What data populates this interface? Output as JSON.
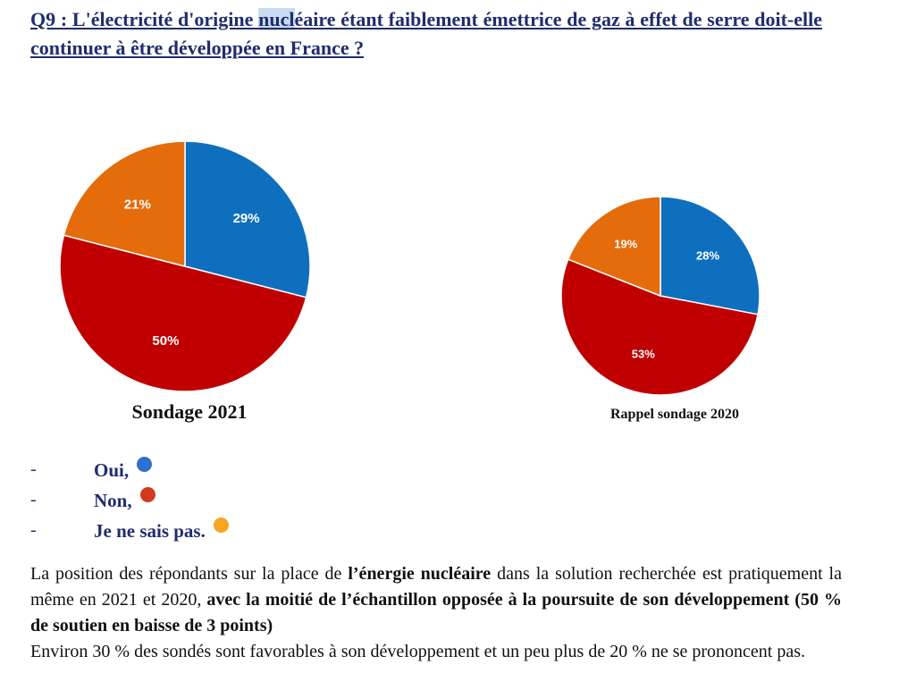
{
  "question": {
    "prefix": "Q9 : L'électricité d'origine ",
    "highlight": "nucl",
    "suffix": "éaire étant faiblement émettrice de gaz à effet de serre doit-elle continuer à être développée en France ?"
  },
  "chart_data": [
    {
      "type": "pie",
      "title": "Sondage 2021",
      "categories": [
        "Oui",
        "Non",
        "Je ne sais pas"
      ],
      "values": [
        29,
        50,
        21
      ],
      "labels": [
        "29%",
        "50%",
        "21%"
      ],
      "colors": [
        "#0f6fbf",
        "#c00000",
        "#e46c0a"
      ]
    },
    {
      "type": "pie",
      "title": "Rappel sondage 2020",
      "categories": [
        "Oui",
        "Non",
        "Je ne sais pas"
      ],
      "values": [
        28,
        53,
        19
      ],
      "labels": [
        "28%",
        "53%",
        "19%"
      ],
      "colors": [
        "#0f6fbf",
        "#c00000",
        "#e46c0a"
      ]
    }
  ],
  "legend": [
    {
      "dash": "-",
      "label": "Oui,",
      "color": "#2f6fd1"
    },
    {
      "dash": "-",
      "label": "Non,",
      "color": "#d23a1f"
    },
    {
      "dash": "-",
      "label": "Je ne sais pas.",
      "color": "#f5a623"
    }
  ],
  "paragraph": {
    "p1": "La position des répondants sur la place de ",
    "b1": "l’énergie nucléaire",
    "p2": " dans la solution recherchée est pratiquement la même en 2021 et 2020, ",
    "b2": "avec la moitié de l’échantillon opposée à la poursuite de son développement (50 % de soutien en baisse de 3 points)",
    "p3": "Environ 30 % des sondés sont favorables à son développement et un peu plus de 20 % ne se prononcent pas."
  }
}
